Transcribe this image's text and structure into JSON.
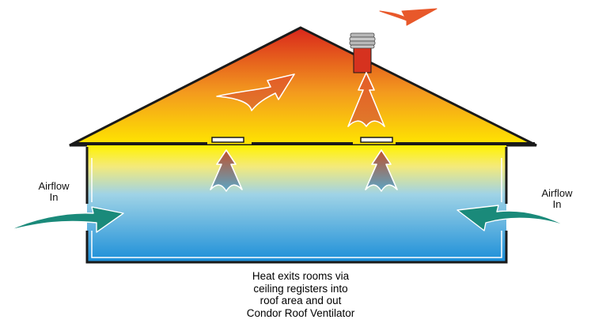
{
  "labels": {
    "airflow_left": [
      "Airflow",
      "In"
    ],
    "airflow_right": [
      "Airflow",
      "In"
    ]
  },
  "caption": [
    "Heat exits rooms via",
    "ceiling registers into",
    "roof area and out",
    "Condor Roof Ventilator"
  ],
  "colors": {
    "roof_top": "#d9261c",
    "roof_mid": "#f39a1e",
    "roof_bottom": "#ffe600",
    "room_top": "#fff200",
    "room_mid": "#9fd3e6",
    "room_bottom": "#1b8ed8",
    "inflow_arrow": "#1a8a7a",
    "exhaust_arrow": "#e8582a",
    "outline": "#1a1a1a"
  },
  "icons": [
    "roof-ventilator-icon",
    "airflow-in-arrow-icon",
    "exhaust-arrow-icon",
    "rising-heat-arrow-icon",
    "ceiling-register-icon"
  ]
}
